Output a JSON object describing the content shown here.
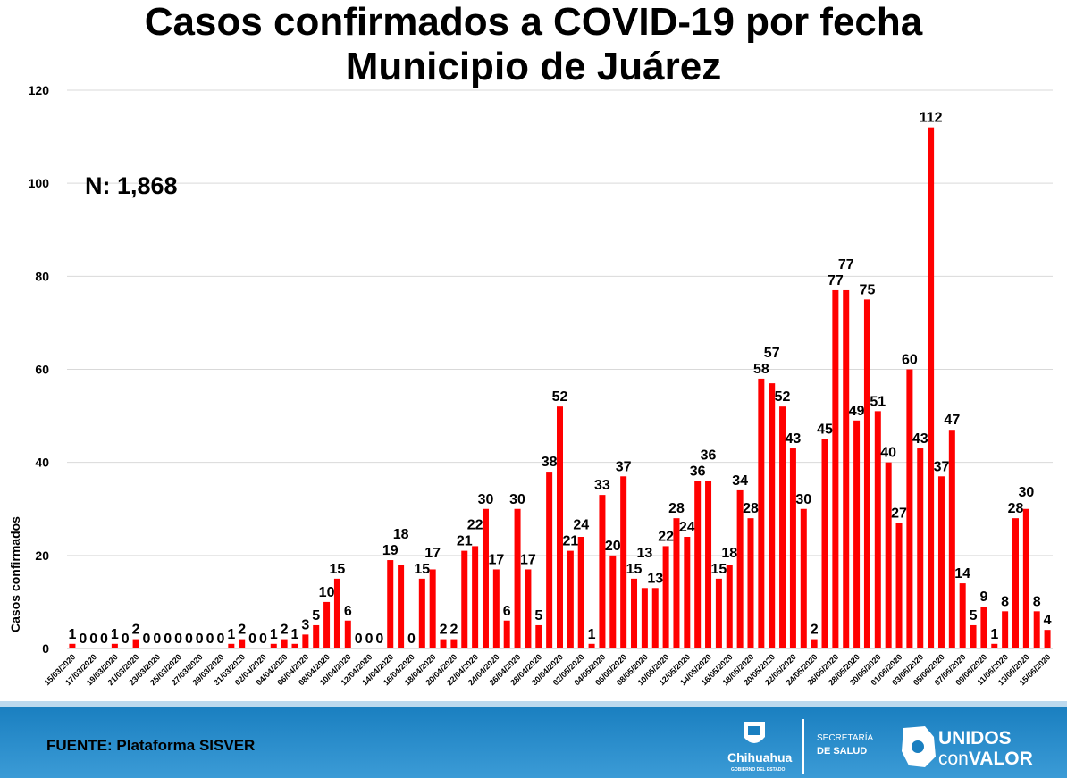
{
  "title": {
    "line1": "Casos confirmados a COVID-19 por fecha",
    "line2": "Municipio de Juárez"
  },
  "annotation": "N: 1,868",
  "source": "FUENTE: Plataforma SISVER",
  "logos": {
    "chihuahua": "Chihuahua",
    "chihuahua_sub": "GOBIERNO DEL ESTADO",
    "secretaria_1": "SECRETARÍA",
    "secretaria_2": "DE SALUD",
    "unidos_1": "UNIDOS",
    "unidos_2a": "con",
    "unidos_2b": "VALOR"
  },
  "colors": {
    "bar": "#ff0000",
    "grid": "#d9d9d9",
    "footer": "#1a7fc0"
  },
  "chart_data": {
    "type": "bar",
    "title": "Casos confirmados a COVID-19 por fecha - Municipio de Juárez",
    "xlabel": "",
    "ylabel": "Casos confirmados",
    "ylim": [
      0,
      120
    ],
    "yticks": [
      0,
      20,
      40,
      60,
      80,
      100,
      120
    ],
    "grid": true,
    "label_every": 2,
    "categories": [
      "15/03/2020",
      "16/03/2020",
      "17/03/2020",
      "18/03/2020",
      "19/03/2020",
      "20/03/2020",
      "21/03/2020",
      "22/03/2020",
      "23/03/2020",
      "24/03/2020",
      "25/03/2020",
      "26/03/2020",
      "27/03/2020",
      "28/03/2020",
      "29/03/2020",
      "30/03/2020",
      "31/03/2020",
      "01/04/2020",
      "02/04/2020",
      "03/04/2020",
      "04/04/2020",
      "05/04/2020",
      "06/04/2020",
      "07/04/2020",
      "08/04/2020",
      "09/04/2020",
      "10/04/2020",
      "11/04/2020",
      "12/04/2020",
      "13/04/2020",
      "14/04/2020",
      "15/04/2020",
      "16/04/2020",
      "17/04/2020",
      "18/04/2020",
      "19/04/2020",
      "20/04/2020",
      "21/04/2020",
      "22/04/2020",
      "23/04/2020",
      "24/04/2020",
      "25/04/2020",
      "26/04/2020",
      "27/04/2020",
      "28/04/2020",
      "29/04/2020",
      "30/04/2020",
      "01/05/2020",
      "02/05/2020",
      "03/05/2020",
      "04/05/2020",
      "05/05/2020",
      "06/05/2020",
      "07/05/2020",
      "08/05/2020",
      "09/05/2020",
      "10/05/2020",
      "11/05/2020",
      "12/05/2020",
      "13/05/2020",
      "14/05/2020",
      "15/05/2020",
      "16/05/2020",
      "17/05/2020",
      "18/05/2020",
      "19/05/2020",
      "20/05/2020",
      "21/05/2020",
      "22/05/2020",
      "23/05/2020",
      "24/05/2020",
      "25/05/2020",
      "26/05/2020",
      "27/05/2020",
      "28/05/2020",
      "29/05/2020",
      "30/05/2020",
      "31/05/2020",
      "01/06/2020",
      "02/06/2020",
      "03/06/2020",
      "04/06/2020",
      "05/06/2020",
      "06/06/2020",
      "07/06/2020",
      "08/06/2020",
      "09/06/2020",
      "10/06/2020",
      "11/06/2020",
      "12/06/2020",
      "13/06/2020",
      "14/06/2020",
      "15/06/2020"
    ],
    "values": [
      1,
      0,
      0,
      0,
      1,
      0,
      2,
      0,
      0,
      0,
      0,
      0,
      0,
      0,
      0,
      1,
      2,
      0,
      0,
      1,
      2,
      1,
      3,
      5,
      10,
      15,
      6,
      0,
      0,
      0,
      19,
      18,
      0,
      15,
      17,
      2,
      2,
      21,
      22,
      30,
      17,
      6,
      30,
      17,
      5,
      38,
      52,
      21,
      24,
      1,
      33,
      20,
      37,
      15,
      13,
      13,
      22,
      28,
      24,
      36,
      36,
      15,
      18,
      34,
      28,
      58,
      57,
      52,
      43,
      30,
      2,
      45,
      77,
      77,
      49,
      75,
      51,
      40,
      27,
      60,
      43,
      112,
      37,
      47,
      14,
      5,
      9,
      1,
      8,
      28,
      30,
      8,
      4
    ],
    "total": 1868
  }
}
